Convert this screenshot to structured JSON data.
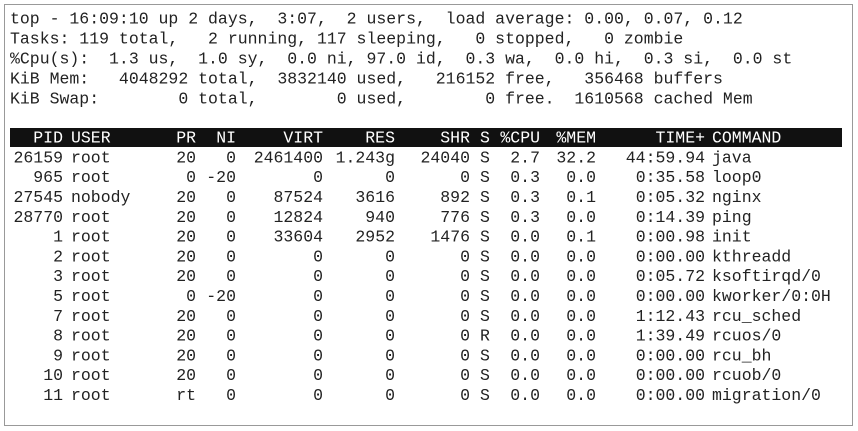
{
  "summary": [
    "top - 16:09:10 up 2 days,  3:07,  2 users,  load average: 0.00, 0.07, 0.12",
    "Tasks: 119 total,   2 running, 117 sleeping,   0 stopped,   0 zombie",
    "%Cpu(s):  1.3 us,  1.0 sy,  0.0 ni, 97.0 id,  0.3 wa,  0.0 hi,  0.3 si,  0.0 st",
    "KiB Mem:   4048292 total,  3832140 used,   216152 free,   356468 buffers",
    "KiB Swap:        0 total,        0 used,        0 free.  1610568 cached Mem"
  ],
  "table": {
    "columns": [
      "PID",
      "USER",
      "PR",
      "NI",
      "VIRT",
      "RES",
      "SHR",
      "S",
      "%CPU",
      "%MEM",
      "TIME+",
      "COMMAND"
    ],
    "rows": [
      [
        "26159",
        "root",
        "20",
        "0",
        "2461400",
        "1.243g",
        "24040",
        "S",
        "2.7",
        "32.2",
        "44:59.94",
        "java"
      ],
      [
        "965",
        "root",
        "0",
        "-20",
        "0",
        "0",
        "0",
        "S",
        "0.3",
        "0.0",
        "0:35.58",
        "loop0"
      ],
      [
        "27545",
        "nobody",
        "20",
        "0",
        "87524",
        "3616",
        "892",
        "S",
        "0.3",
        "0.1",
        "0:05.32",
        "nginx"
      ],
      [
        "28770",
        "root",
        "20",
        "0",
        "12824",
        "940",
        "776",
        "S",
        "0.3",
        "0.0",
        "0:14.39",
        "ping"
      ],
      [
        "1",
        "root",
        "20",
        "0",
        "33604",
        "2952",
        "1476",
        "S",
        "0.0",
        "0.1",
        "0:00.98",
        "init"
      ],
      [
        "2",
        "root",
        "20",
        "0",
        "0",
        "0",
        "0",
        "S",
        "0.0",
        "0.0",
        "0:00.00",
        "kthreadd"
      ],
      [
        "3",
        "root",
        "20",
        "0",
        "0",
        "0",
        "0",
        "S",
        "0.0",
        "0.0",
        "0:05.72",
        "ksoftirqd/0"
      ],
      [
        "5",
        "root",
        "0",
        "-20",
        "0",
        "0",
        "0",
        "S",
        "0.0",
        "0.0",
        "0:00.00",
        "kworker/0:0H"
      ],
      [
        "7",
        "root",
        "20",
        "0",
        "0",
        "0",
        "0",
        "S",
        "0.0",
        "0.0",
        "1:12.43",
        "rcu_sched"
      ],
      [
        "8",
        "root",
        "20",
        "0",
        "0",
        "0",
        "0",
        "R",
        "0.0",
        "0.0",
        "1:39.49",
        "rcuos/0"
      ],
      [
        "9",
        "root",
        "20",
        "0",
        "0",
        "0",
        "0",
        "S",
        "0.0",
        "0.0",
        "0:00.00",
        "rcu_bh"
      ],
      [
        "10",
        "root",
        "20",
        "0",
        "0",
        "0",
        "0",
        "S",
        "0.0",
        "0.0",
        "0:00.00",
        "rcuob/0"
      ],
      [
        "11",
        "root",
        "rt",
        "0",
        "0",
        "0",
        "0",
        "S",
        "0.0",
        "0.0",
        "0:00.00",
        "migration/0"
      ]
    ]
  }
}
